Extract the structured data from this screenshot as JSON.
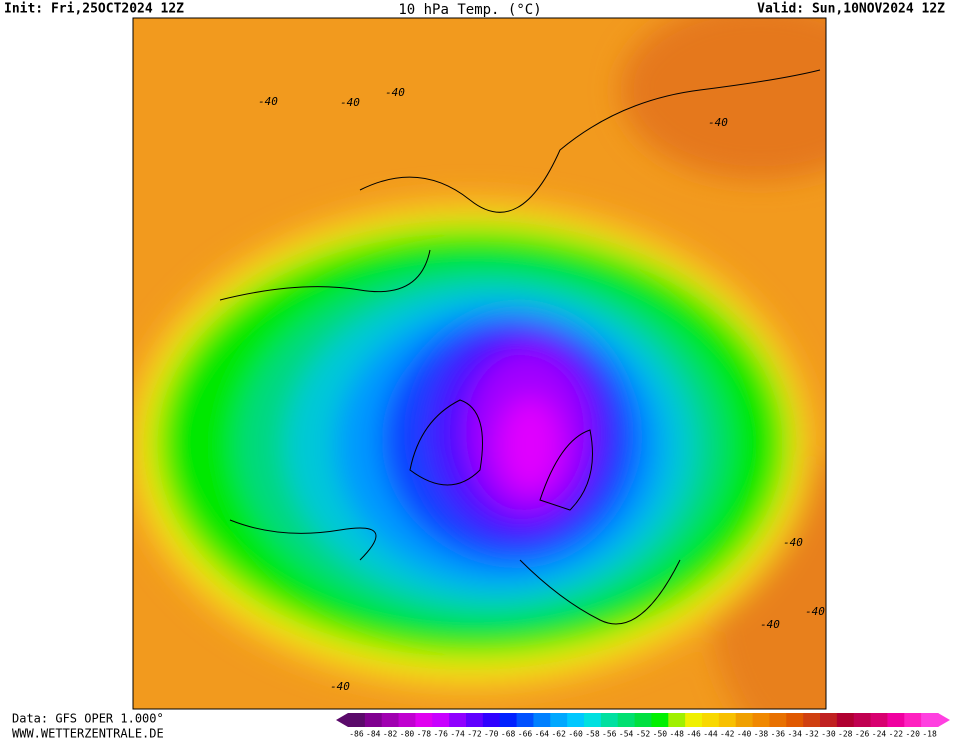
{
  "header": {
    "init": "Init: Fri,25OCT2024 12Z",
    "title": "10 hPa Temp. (°C)",
    "valid": "Valid: Sun,10NOV2024 12Z"
  },
  "footer": {
    "source": "Data: GFS OPER 1.000°",
    "site": "WWW.WETTERZENTRALE.DE"
  },
  "map": {
    "contour_labels": [
      "-40",
      "-40",
      "-40",
      "-40",
      "-40",
      "-40",
      "-40",
      "-40"
    ]
  },
  "colorbar": {
    "labels": [
      -86,
      -84,
      -82,
      -80,
      -78,
      -76,
      -74,
      -72,
      -70,
      -68,
      -66,
      -64,
      -62,
      -60,
      -58,
      -56,
      -54,
      -52,
      -50,
      -48,
      -46,
      -44,
      -42,
      -40,
      -38,
      -36,
      -34,
      -32,
      -30,
      -28,
      -26,
      -24,
      -22,
      -20,
      -18
    ],
    "colors": [
      "#5a0a6a",
      "#800090",
      "#a000b0",
      "#c000d0",
      "#e000f0",
      "#c800ff",
      "#9000ff",
      "#6000ff",
      "#3000ff",
      "#0020ff",
      "#0050ff",
      "#0080ff",
      "#00a8ff",
      "#00c8ff",
      "#00e0e0",
      "#00e0a0",
      "#00e070",
      "#00e040",
      "#00f000",
      "#a0f000",
      "#f0f000",
      "#f8d800",
      "#f8c000",
      "#f0a000",
      "#f08800",
      "#e87000",
      "#e05800",
      "#d04010",
      "#c02020",
      "#b00030",
      "#c00050",
      "#d80070",
      "#f000a0",
      "#ff20c0",
      "#ff40e0"
    ]
  }
}
